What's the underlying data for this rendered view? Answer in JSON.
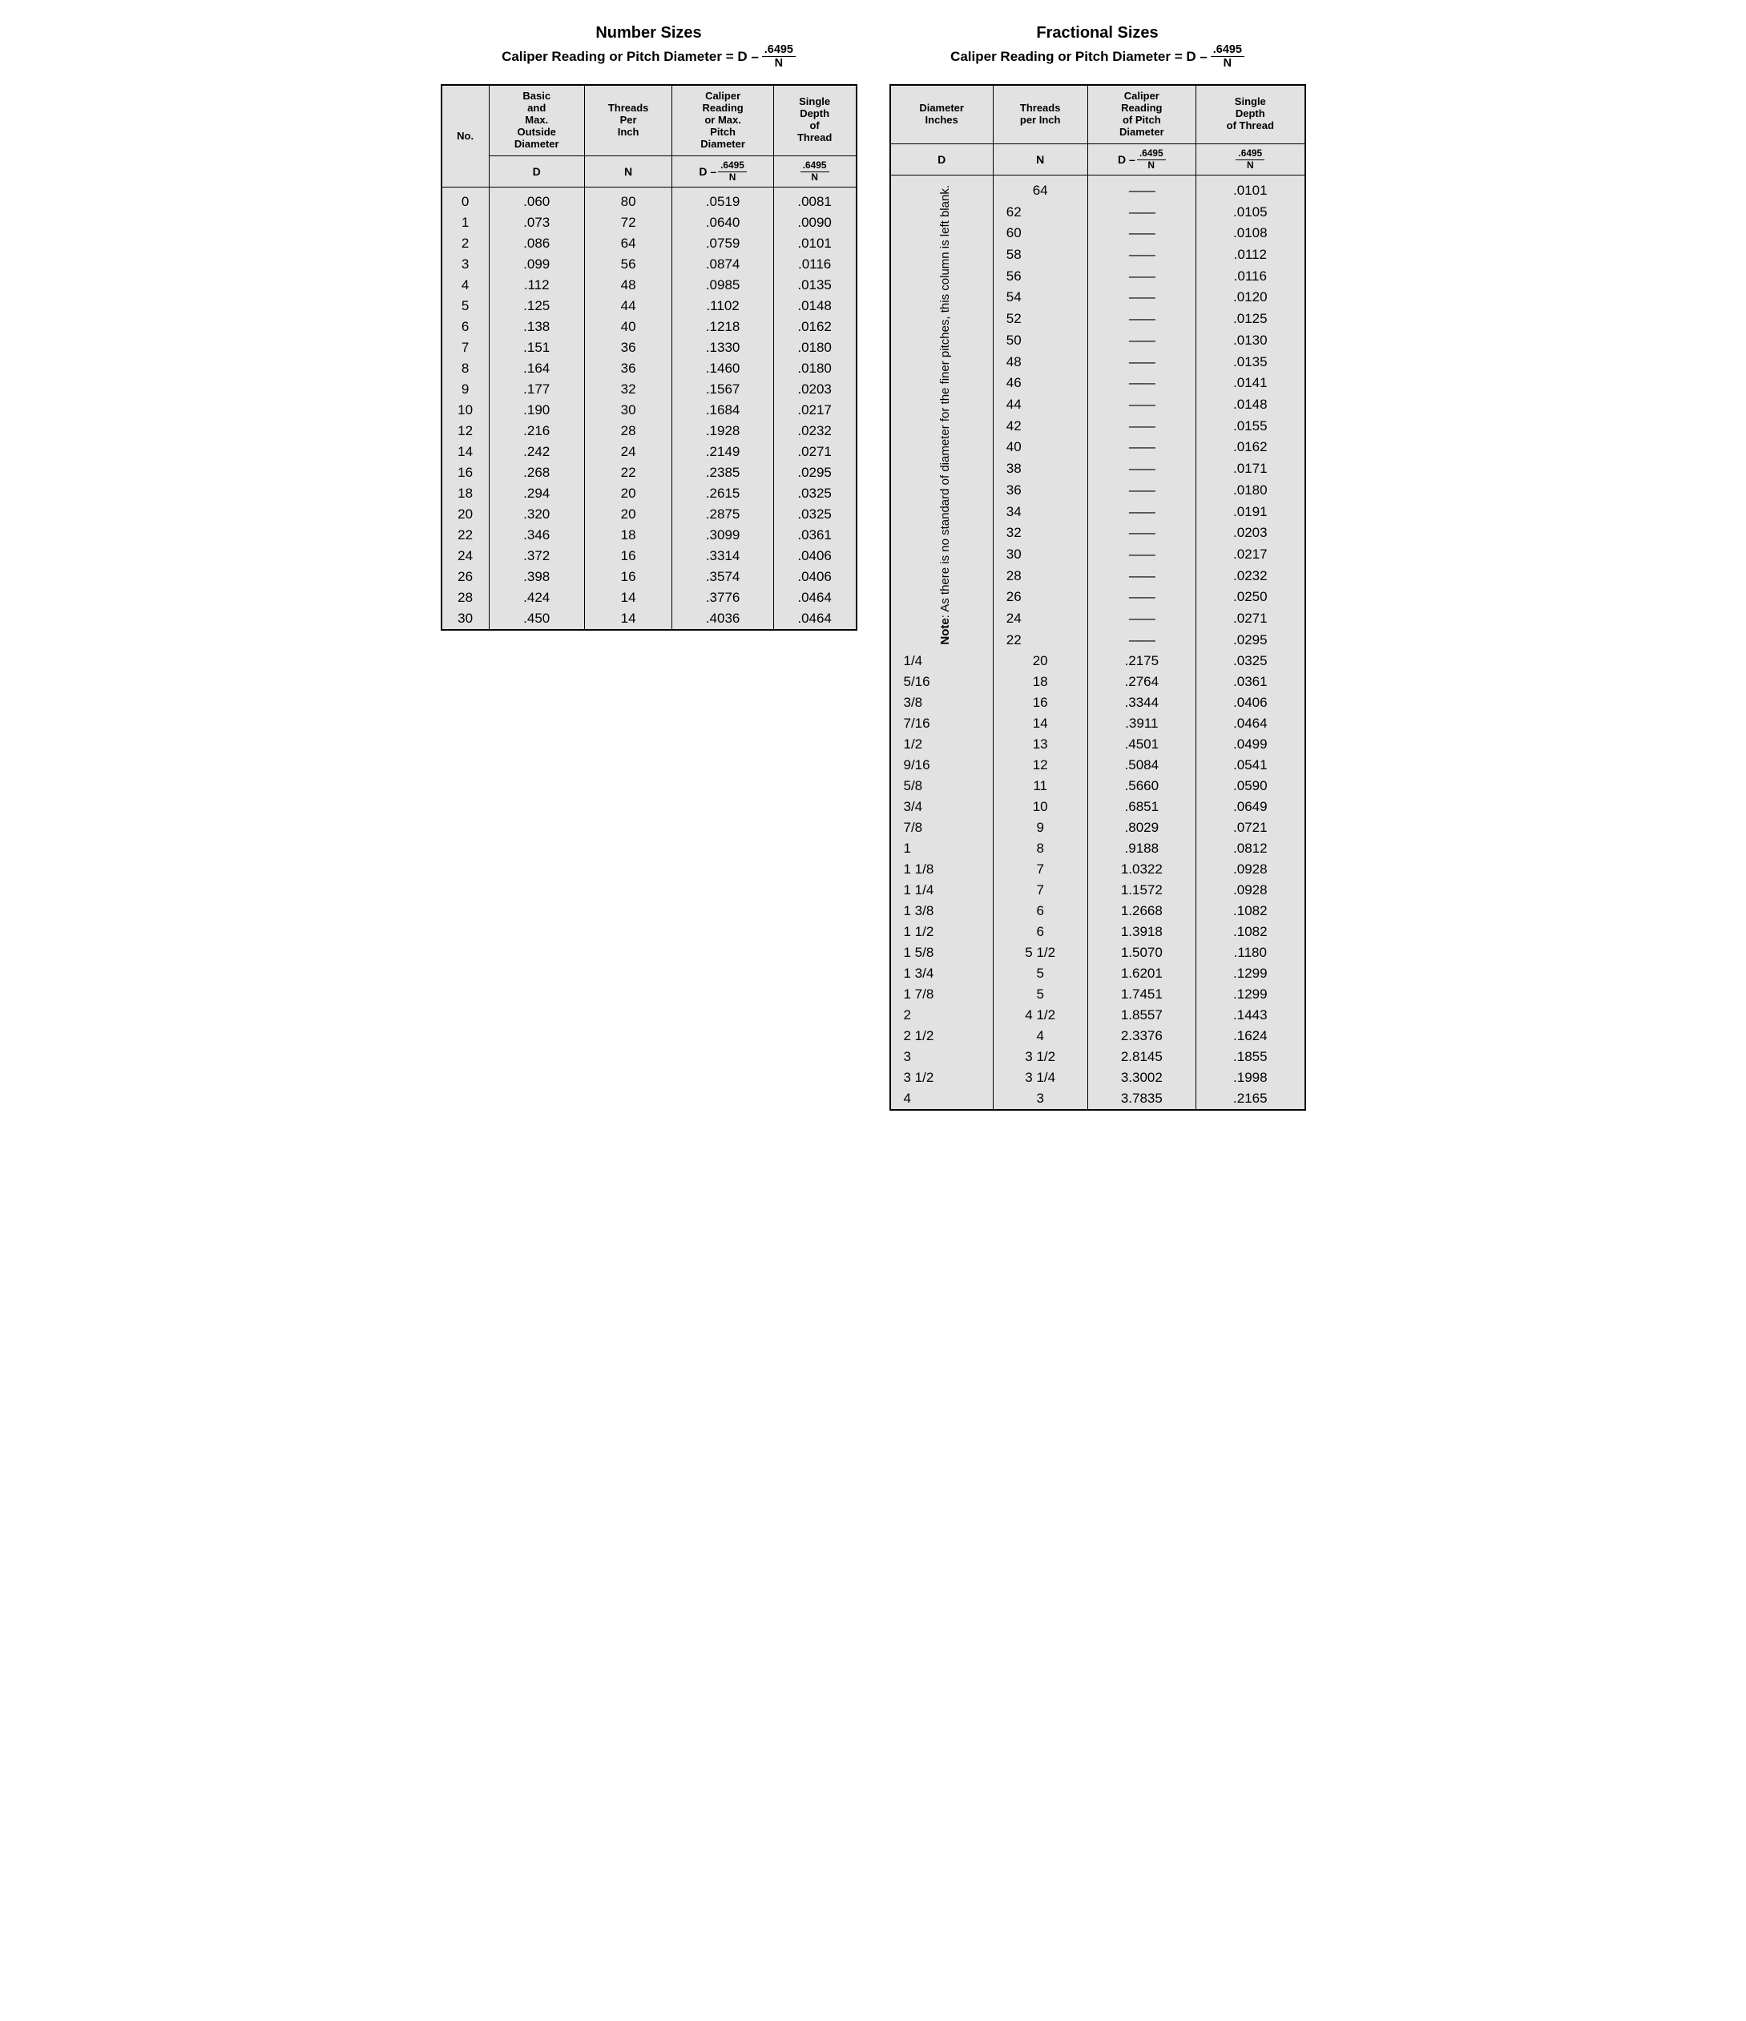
{
  "colors": {
    "bg": "#ffffff",
    "table_bg": "#e2e2e2",
    "border": "#000000",
    "text": "#000000"
  },
  "left": {
    "title": "Number Sizes",
    "formula_prefix": "Caliper Reading or Pitch Diameter = D –",
    "formula_num": ".6495",
    "formula_den": "N",
    "headers": {
      "c1": "No.",
      "c2": "Basic\nand\nMax.\nOutside\nDiameter",
      "c3": "Threads\nPer\nInch",
      "c4": "Caliper\nReading\nor Max.\nPitch\nDiameter",
      "c5": "Single\nDepth\nof\nThread"
    },
    "sub": {
      "c2": "D",
      "c3": "N",
      "c4_pre": "D –",
      "c4_num": ".6495",
      "c4_den": "N",
      "c5_num": ".6495",
      "c5_den": "N"
    },
    "rows": [
      {
        "no": "0",
        "d": ".060",
        "n": "80",
        "p": ".0519",
        "s": ".0081"
      },
      {
        "no": "1",
        "d": ".073",
        "n": "72",
        "p": ".0640",
        "s": ".0090"
      },
      {
        "no": "2",
        "d": ".086",
        "n": "64",
        "p": ".0759",
        "s": ".0101"
      },
      {
        "no": "3",
        "d": ".099",
        "n": "56",
        "p": ".0874",
        "s": ".0116"
      },
      {
        "no": "4",
        "d": ".112",
        "n": "48",
        "p": ".0985",
        "s": ".0135"
      },
      {
        "no": "5",
        "d": ".125",
        "n": "44",
        "p": ".1102",
        "s": ".0148"
      },
      {
        "no": "6",
        "d": ".138",
        "n": "40",
        "p": ".1218",
        "s": ".0162"
      },
      {
        "no": "7",
        "d": ".151",
        "n": "36",
        "p": ".1330",
        "s": ".0180"
      },
      {
        "no": "8",
        "d": ".164",
        "n": "36",
        "p": ".1460",
        "s": ".0180"
      },
      {
        "no": "9",
        "d": ".177",
        "n": "32",
        "p": ".1567",
        "s": ".0203"
      },
      {
        "no": "10",
        "d": ".190",
        "n": "30",
        "p": ".1684",
        "s": ".0217"
      },
      {
        "no": "12",
        "d": ".216",
        "n": "28",
        "p": ".1928",
        "s": ".0232"
      },
      {
        "no": "14",
        "d": ".242",
        "n": "24",
        "p": ".2149",
        "s": ".0271"
      },
      {
        "no": "16",
        "d": ".268",
        "n": "22",
        "p": ".2385",
        "s": ".0295"
      },
      {
        "no": "18",
        "d": ".294",
        "n": "20",
        "p": ".2615",
        "s": ".0325"
      },
      {
        "no": "20",
        "d": ".320",
        "n": "20",
        "p": ".2875",
        "s": ".0325"
      },
      {
        "no": "22",
        "d": ".346",
        "n": "18",
        "p": ".3099",
        "s": ".0361"
      },
      {
        "no": "24",
        "d": ".372",
        "n": "16",
        "p": ".3314",
        "s": ".0406"
      },
      {
        "no": "26",
        "d": ".398",
        "n": "16",
        "p": ".3574",
        "s": ".0406"
      },
      {
        "no": "28",
        "d": ".424",
        "n": "14",
        "p": ".3776",
        "s": ".0464"
      },
      {
        "no": "30",
        "d": ".450",
        "n": "14",
        "p": ".4036",
        "s": ".0464"
      }
    ]
  },
  "right": {
    "title": "Fractional Sizes",
    "formula_prefix": "Caliper Reading or Pitch Diameter = D –",
    "formula_num": ".6495",
    "formula_den": "N",
    "headers": {
      "c1": "Diameter\nInches",
      "c2": "Threads\nper Inch",
      "c3": "Caliper\nReading\nof Pitch\nDiameter",
      "c4": "Single\nDepth\nof Thread"
    },
    "sub": {
      "c1": "D",
      "c2": "N",
      "c3_pre": "D –",
      "c3_num": ".6495",
      "c3_den": "N",
      "c4_num": ".6495",
      "c4_den": "N"
    },
    "note_bold": "Note",
    "note_rest": ": As there is no standard of diameter for the finer pitches, this column is left blank.",
    "note_span": 22,
    "dash": "——",
    "rows": [
      {
        "d": "__NOTE__",
        "n": "64",
        "p": "—",
        "s": ".0101"
      },
      {
        "d": "",
        "n": "62",
        "p": "—",
        "s": ".0105"
      },
      {
        "d": "",
        "n": "60",
        "p": "—",
        "s": ".0108"
      },
      {
        "d": "",
        "n": "58",
        "p": "—",
        "s": ".0112"
      },
      {
        "d": "",
        "n": "56",
        "p": "—",
        "s": ".0116"
      },
      {
        "d": "",
        "n": "54",
        "p": "—",
        "s": ".0120"
      },
      {
        "d": "",
        "n": "52",
        "p": "—",
        "s": ".0125"
      },
      {
        "d": "",
        "n": "50",
        "p": "—",
        "s": ".0130"
      },
      {
        "d": "",
        "n": "48",
        "p": "—",
        "s": ".0135"
      },
      {
        "d": "",
        "n": "46",
        "p": "—",
        "s": ".0141"
      },
      {
        "d": "",
        "n": "44",
        "p": "—",
        "s": ".0148"
      },
      {
        "d": "",
        "n": "42",
        "p": "—",
        "s": ".0155"
      },
      {
        "d": "",
        "n": "40",
        "p": "—",
        "s": ".0162"
      },
      {
        "d": "",
        "n": "38",
        "p": "—",
        "s": ".0171"
      },
      {
        "d": "",
        "n": "36",
        "p": "—",
        "s": ".0180"
      },
      {
        "d": "",
        "n": "34",
        "p": "—",
        "s": ".0191"
      },
      {
        "d": "",
        "n": "32",
        "p": "—",
        "s": ".0203"
      },
      {
        "d": "",
        "n": "30",
        "p": "—",
        "s": ".0217"
      },
      {
        "d": "",
        "n": "28",
        "p": "—",
        "s": ".0232"
      },
      {
        "d": "",
        "n": "26",
        "p": "—",
        "s": ".0250"
      },
      {
        "d": "",
        "n": "24",
        "p": "—",
        "s": ".0271"
      },
      {
        "d": "",
        "n": "22",
        "p": "—",
        "s": ".0295"
      },
      {
        "d": "1/4",
        "n": "20",
        "p": ".2175",
        "s": ".0325"
      },
      {
        "d": "5/16",
        "n": "18",
        "p": ".2764",
        "s": ".0361"
      },
      {
        "d": "3/8",
        "n": "16",
        "p": ".3344",
        "s": ".0406"
      },
      {
        "d": "7/16",
        "n": "14",
        "p": ".3911",
        "s": ".0464"
      },
      {
        "d": "1/2",
        "n": "13",
        "p": ".4501",
        "s": ".0499"
      },
      {
        "d": "9/16",
        "n": "12",
        "p": ".5084",
        "s": ".0541"
      },
      {
        "d": "5/8",
        "n": "11",
        "p": ".5660",
        "s": ".0590"
      },
      {
        "d": "3/4",
        "n": "10",
        "p": ".6851",
        "s": ".0649"
      },
      {
        "d": "7/8",
        "n": "9",
        "p": ".8029",
        "s": ".0721"
      },
      {
        "d": "1",
        "n": "8",
        "p": ".9188",
        "s": ".0812"
      },
      {
        "d": "1 1/8",
        "n": "7",
        "p": "1.0322",
        "s": ".0928"
      },
      {
        "d": "1 1/4",
        "n": "7",
        "p": "1.1572",
        "s": ".0928"
      },
      {
        "d": "1 3/8",
        "n": "6",
        "p": "1.2668",
        "s": ".1082"
      },
      {
        "d": "1 1/2",
        "n": "6",
        "p": "1.3918",
        "s": ".1082"
      },
      {
        "d": "1 5/8",
        "n": "5 1/2",
        "p": "1.5070",
        "s": ".1180"
      },
      {
        "d": "1 3/4",
        "n": "5",
        "p": "1.6201",
        "s": ".1299"
      },
      {
        "d": "1 7/8",
        "n": "5",
        "p": "1.7451",
        "s": ".1299"
      },
      {
        "d": "2",
        "n": "4 1/2",
        "p": "1.8557",
        "s": ".1443"
      },
      {
        "d": "2 1/2",
        "n": "4",
        "p": "2.3376",
        "s": ".1624"
      },
      {
        "d": "3",
        "n": "3 1/2",
        "p": "2.8145",
        "s": ".1855"
      },
      {
        "d": "3 1/2",
        "n": "3 1/4",
        "p": "3.3002",
        "s": ".1998"
      },
      {
        "d": "4",
        "n": "3",
        "p": "3.7835",
        "s": ".2165"
      }
    ]
  }
}
